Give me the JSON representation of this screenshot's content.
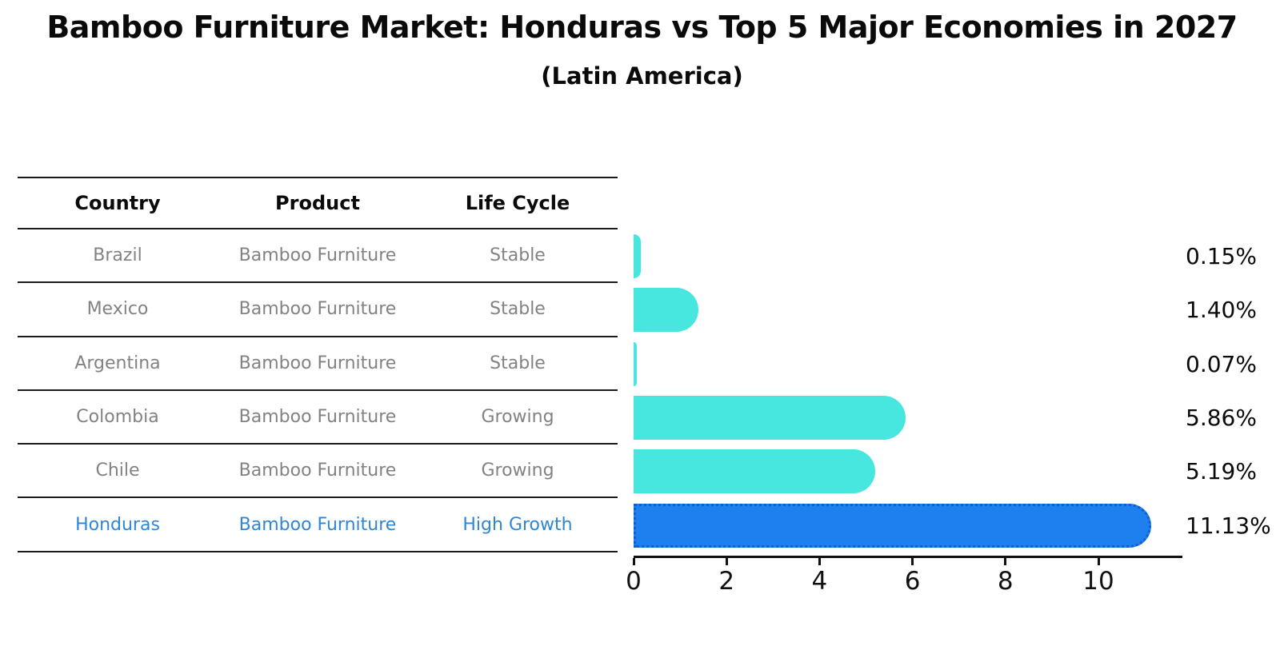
{
  "title": "Bamboo Furniture Market: Honduras vs Top 5 Major Economies in 2027",
  "subtitle": "(Latin America)",
  "table": {
    "headers": [
      "Country",
      "Product",
      "Life Cycle"
    ],
    "rows": [
      {
        "country": "Brazil",
        "product": "Bamboo Furniture",
        "life_cycle": "Stable"
      },
      {
        "country": "Mexico",
        "product": "Bamboo Furniture",
        "life_cycle": "Stable"
      },
      {
        "country": "Argentina",
        "product": "Bamboo Furniture",
        "life_cycle": "Stable"
      },
      {
        "country": "Colombia",
        "product": "Bamboo Furniture",
        "life_cycle": "Growing"
      },
      {
        "country": "Chile",
        "product": "Bamboo Furniture",
        "life_cycle": "Growing"
      },
      {
        "country": "Honduras",
        "product": "Bamboo Furniture",
        "life_cycle": "High Growth"
      }
    ],
    "highlight_row": 5
  },
  "chart_data": {
    "type": "bar",
    "orientation": "horizontal",
    "categories": [
      "Brazil",
      "Mexico",
      "Argentina",
      "Colombia",
      "Chile",
      "Honduras"
    ],
    "values": [
      0.15,
      1.4,
      0.07,
      5.86,
      5.19,
      11.13
    ],
    "value_labels": [
      "0.15%",
      "1.40%",
      "0.07%",
      "5.86%",
      "5.19%",
      "11.13%"
    ],
    "xlim": [
      0,
      11.8
    ],
    "xticks": [
      0,
      2,
      4,
      6,
      8,
      10
    ],
    "grid": false,
    "legend": "none",
    "highlight_index": 5
  },
  "colors": {
    "bar": "#47e6df",
    "highlight_bar": "#1e7fee",
    "highlight_border": "#0d5ecf",
    "highlight_text": "#2e86d5",
    "table_text": "#828282",
    "line": "#1a1a1a"
  }
}
